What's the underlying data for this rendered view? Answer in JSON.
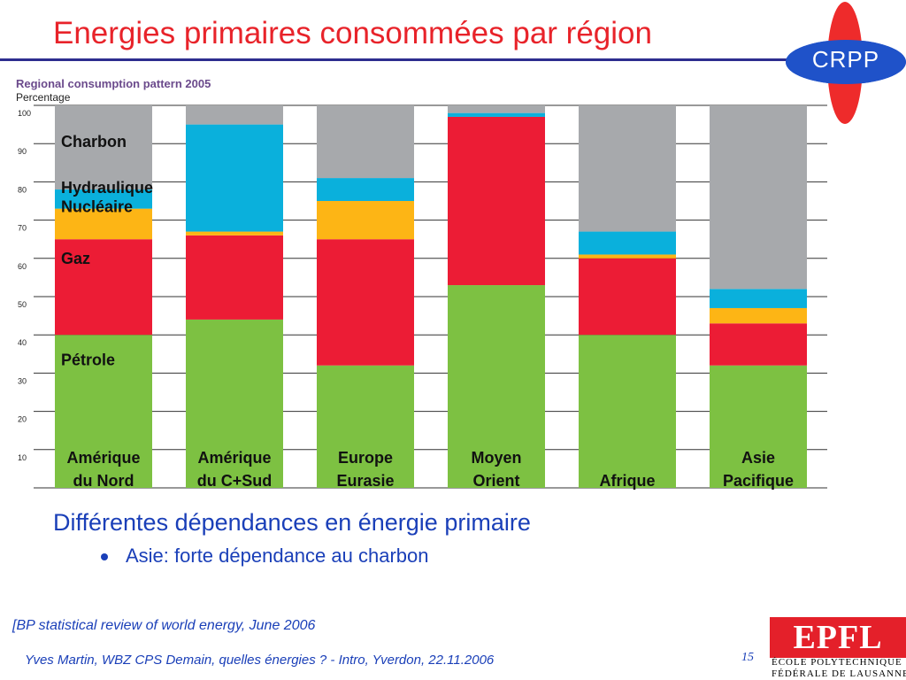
{
  "slide": {
    "title": "Energies primaires consommées par région",
    "subtitle": "Différentes dépendances en énergie primaire",
    "bullet": "Asie: forte dépendance au charbon",
    "source": "[BP statistical review  of world energy, June 2006",
    "footer": "Yves Martin, WBZ CPS Demain, quelles énergies ? - Intro, Yverdon, 22.11.2006",
    "page_number": "15"
  },
  "logos": {
    "crpp": "CRPP",
    "epfl": "EPFL",
    "epfl_line1": "ÉCOLE POLYTECHNIQUE",
    "epfl_line2": "FÉDÉRALE DE LAUSANNE"
  },
  "colors": {
    "petrole": "#7dc142",
    "gaz": "#ec1c35",
    "nucleaire": "#fdb515",
    "hydraulique": "#0ab0dc",
    "charbon": "#a7a9ac",
    "title": "#e8232a",
    "text_blue": "#1a3fb8"
  },
  "chart_data": {
    "type": "bar",
    "stacked": true,
    "title": "Regional consumption pattern 2005",
    "ylabel": "Percentage",
    "xlabel": "",
    "ylim": [
      0,
      100
    ],
    "yticks": [
      10,
      20,
      30,
      40,
      50,
      60,
      70,
      80,
      90,
      100
    ],
    "grid": true,
    "categories": [
      [
        "Amérique",
        "du Nord"
      ],
      [
        "Amérique",
        "du C+Sud"
      ],
      [
        "Europe",
        "Eurasie"
      ],
      [
        "Moyen",
        "Orient"
      ],
      [
        "",
        "Afrique"
      ],
      [
        "Asie",
        "Pacifique"
      ]
    ],
    "series": [
      {
        "name": "Pétrole",
        "values": [
          40,
          44,
          32,
          53,
          40,
          32
        ]
      },
      {
        "name": "Gaz",
        "values": [
          25,
          22,
          33,
          44,
          20,
          11
        ]
      },
      {
        "name": "Nucléaire",
        "values": [
          8,
          1,
          10,
          0,
          1,
          4
        ]
      },
      {
        "name": "Hydraulique",
        "values": [
          5,
          28,
          6,
          1,
          6,
          5
        ]
      },
      {
        "name": "Charbon",
        "values": [
          22,
          5,
          19,
          2,
          33,
          48
        ]
      }
    ],
    "legend": "inline-first-bar"
  }
}
